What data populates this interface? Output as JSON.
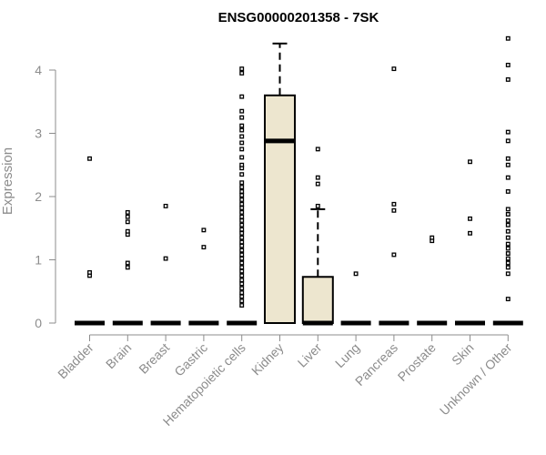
{
  "chart_data": {
    "type": "box",
    "title": "ENSG00000201358 - 7SK",
    "ylabel": "Expression",
    "xlabel": "",
    "ylim": [
      0,
      4.5
    ],
    "yticks": [
      0,
      1,
      2,
      3,
      4
    ],
    "grid": false,
    "colors": {
      "box_fill": "#ede6cf",
      "stroke": "#000000",
      "axis": "#8c8c8c"
    },
    "categories": [
      "Bladder",
      "Brain",
      "Breast",
      "Gastric",
      "Hematopoietic cells",
      "Kidney",
      "Liver",
      "Lung",
      "Pancreas",
      "Prostate",
      "Skin",
      "Unknown / Other"
    ],
    "boxes": [
      {
        "category": "Bladder",
        "min": 0,
        "q1": 0,
        "median": 0,
        "q3": 0,
        "max": 0,
        "outliers": [
          0.75,
          0.8,
          2.6
        ]
      },
      {
        "category": "Brain",
        "min": 0,
        "q1": 0,
        "median": 0,
        "q3": 0,
        "max": 0,
        "outliers": [
          0.88,
          0.95,
          1.4,
          1.45,
          1.6,
          1.68,
          1.75
        ]
      },
      {
        "category": "Breast",
        "min": 0,
        "q1": 0,
        "median": 0,
        "q3": 0,
        "max": 0,
        "outliers": [
          1.02,
          1.85
        ]
      },
      {
        "category": "Gastric",
        "min": 0,
        "q1": 0,
        "median": 0,
        "q3": 0,
        "max": 0,
        "outliers": [
          1.2,
          1.47
        ]
      },
      {
        "category": "Hematopoietic cells",
        "min": 0,
        "q1": 0,
        "median": 0,
        "q3": 0,
        "max": 0,
        "outliers": [
          0.28,
          0.35,
          0.42,
          0.48,
          0.55,
          0.62,
          0.68,
          0.75,
          0.82,
          0.88,
          0.95,
          1.02,
          1.08,
          1.15,
          1.22,
          1.28,
          1.35,
          1.42,
          1.48,
          1.55,
          1.62,
          1.68,
          1.75,
          1.82,
          1.88,
          1.95,
          2.02,
          2.08,
          2.15,
          2.22,
          2.35,
          2.45,
          2.5,
          2.62,
          2.75,
          2.85,
          2.95,
          3.05,
          3.12,
          3.25,
          3.35,
          3.58,
          3.95,
          4.02
        ]
      },
      {
        "category": "Kidney",
        "min": 0,
        "q1": 0,
        "median": 2.88,
        "q3": 3.6,
        "max": 4.42,
        "outliers": []
      },
      {
        "category": "Liver",
        "min": 0,
        "q1": 0,
        "median": 0,
        "q3": 0.73,
        "max": 1.8,
        "outliers": [
          1.85,
          2.2,
          2.3,
          2.75
        ]
      },
      {
        "category": "Lung",
        "min": 0,
        "q1": 0,
        "median": 0,
        "q3": 0,
        "max": 0,
        "outliers": [
          0.78
        ]
      },
      {
        "category": "Pancreas",
        "min": 0,
        "q1": 0,
        "median": 0,
        "q3": 0,
        "max": 0,
        "outliers": [
          1.08,
          1.78,
          1.88,
          4.02
        ]
      },
      {
        "category": "Prostate",
        "min": 0,
        "q1": 0,
        "median": 0,
        "q3": 0,
        "max": 0,
        "outliers": [
          1.3,
          1.35
        ]
      },
      {
        "category": "Skin",
        "min": 0,
        "q1": 0,
        "median": 0,
        "q3": 0,
        "max": 0,
        "outliers": [
          1.42,
          1.65,
          2.55
        ]
      },
      {
        "category": "Unknown / Other",
        "min": 0,
        "q1": 0,
        "median": 0,
        "q3": 0,
        "max": 0,
        "outliers": [
          0.38,
          0.78,
          0.88,
          0.95,
          1.02,
          1.1,
          1.18,
          1.25,
          1.35,
          1.45,
          1.55,
          1.62,
          1.72,
          1.8,
          2.08,
          2.3,
          2.5,
          2.6,
          2.88,
          3.02,
          3.85,
          4.08,
          4.5
        ]
      }
    ]
  }
}
